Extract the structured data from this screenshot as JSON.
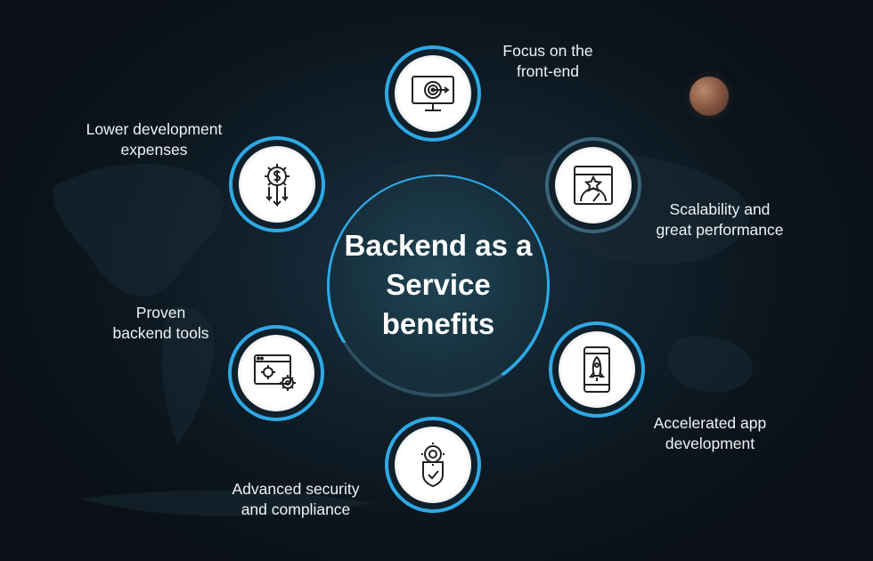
{
  "title": "Backend as a Service benefits",
  "benefits": [
    {
      "id": "front-end",
      "line1": "Focus on the",
      "line2": "front-end",
      "icon": "target-monitor-icon"
    },
    {
      "id": "scalability",
      "line1": "Scalability and",
      "line2": "great performance",
      "icon": "performance-gauge-icon"
    },
    {
      "id": "accelerated",
      "line1": "Accelerated app",
      "line2": "development",
      "icon": "rocket-phone-icon"
    },
    {
      "id": "security",
      "line1": "Advanced security",
      "line2": "and compliance",
      "icon": "security-shield-icon"
    },
    {
      "id": "tools",
      "line1": "Proven",
      "line2": "backend tools",
      "icon": "gear-window-icon"
    },
    {
      "id": "expenses",
      "line1": "Lower development",
      "line2": "expenses",
      "icon": "dollar-gear-icon"
    }
  ],
  "colors": {
    "ring_bright": "#2ea9e6",
    "ring_dim": "#3a6478",
    "background": "#0c161e"
  }
}
